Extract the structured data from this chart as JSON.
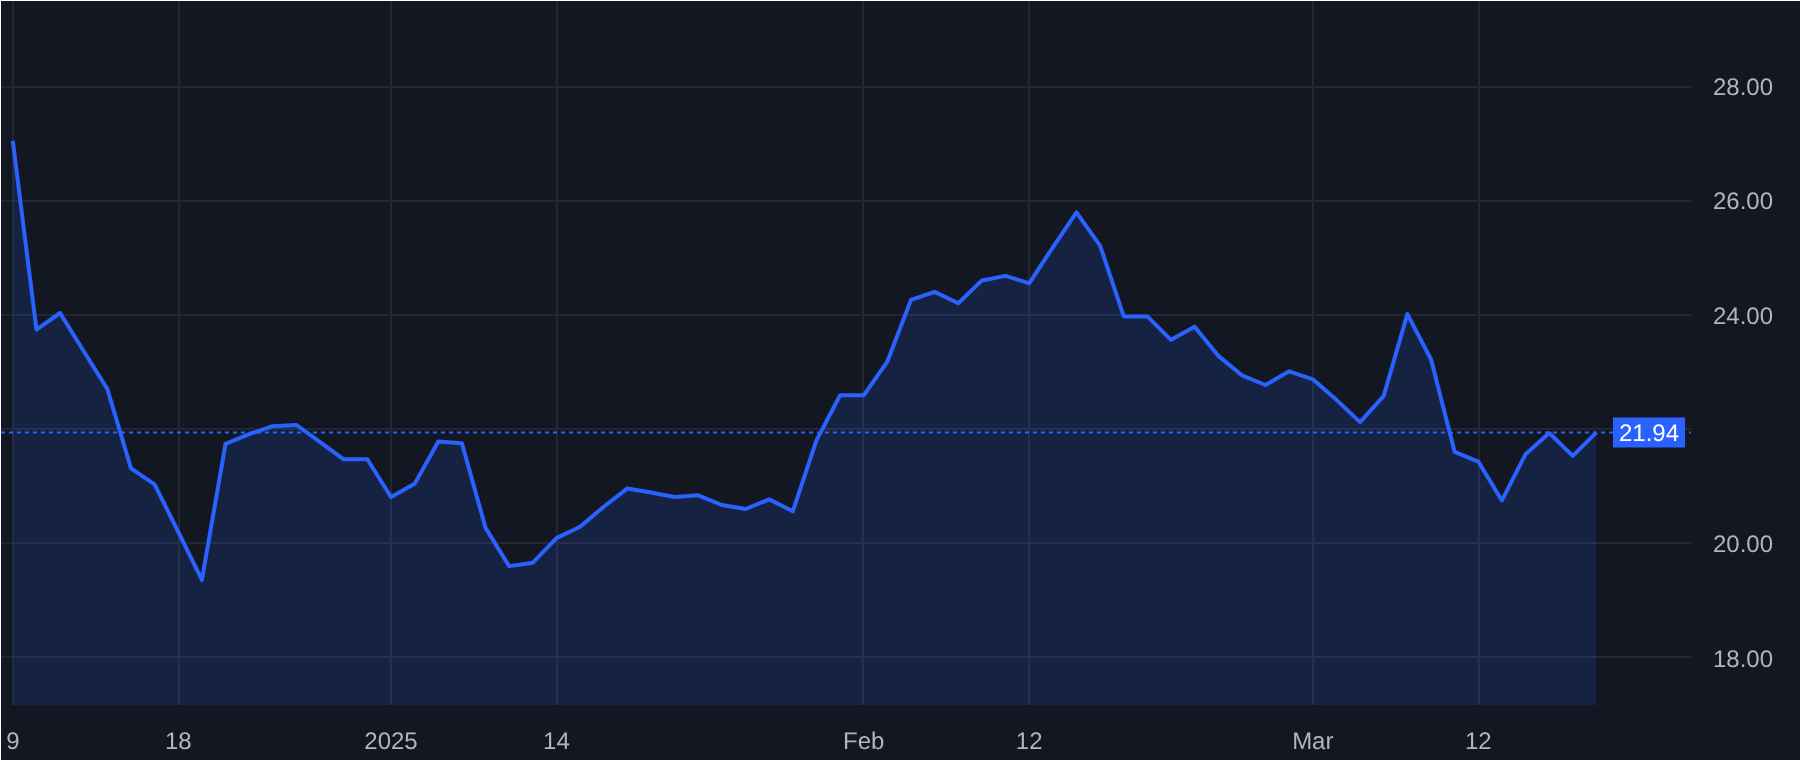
{
  "chart_data": {
    "type": "area",
    "categories": [
      "9",
      null,
      null,
      null,
      null,
      null,
      null,
      "18",
      null,
      null,
      null,
      null,
      null,
      null,
      null,
      null,
      "2025",
      null,
      null,
      null,
      null,
      null,
      null,
      "14",
      null,
      null,
      null,
      null,
      null,
      null,
      null,
      null,
      null,
      null,
      null,
      null,
      "Feb",
      null,
      null,
      null,
      null,
      null,
      null,
      "12",
      null,
      null,
      null,
      null,
      null,
      null,
      null,
      null,
      null,
      null,
      null,
      "Mar",
      null,
      null,
      null,
      null,
      null,
      null,
      "12",
      null,
      null,
      null,
      null,
      null
    ],
    "series": [
      {
        "color": "#2962ff",
        "values": [
          27.04,
          23.74,
          24.03,
          23.36,
          22.7,
          21.31,
          21.03,
          20.2,
          19.36,
          21.74,
          21.91,
          22.05,
          22.07,
          21.77,
          21.47,
          21.47,
          20.81,
          21.04,
          21.78,
          21.75,
          20.27,
          19.6,
          19.66,
          20.09,
          20.29,
          20.64,
          20.96,
          20.89,
          20.81,
          20.84,
          20.67,
          20.6,
          20.77,
          20.56,
          21.8,
          22.59,
          22.59,
          23.18,
          24.26,
          24.4,
          24.2,
          24.6,
          24.68,
          24.55,
          25.18,
          25.79,
          25.21,
          23.97,
          23.97,
          23.56,
          23.79,
          23.28,
          22.94,
          22.77,
          23.01,
          22.87,
          22.51,
          22.12,
          22.58,
          24.01,
          23.22,
          21.6,
          21.43,
          20.75,
          21.56,
          21.93,
          21.53,
          21.94
        ]
      }
    ],
    "ylim": [
      17.17,
      29.49
    ],
    "yticks": [
      {
        "value": 18,
        "label": "18.00"
      },
      {
        "value": 20,
        "label": "20.00"
      },
      {
        "value": 22,
        "label": null
      },
      {
        "value": 24,
        "label": "24.00"
      },
      {
        "value": 26,
        "label": "26.00"
      },
      {
        "value": 28,
        "label": "28.00"
      }
    ],
    "ref_lines": [
      {
        "axis": "y",
        "value": 21.94,
        "label": "21.94",
        "color": "#2962ff",
        "line_style": "dotted"
      }
    ],
    "grid": true
  }
}
